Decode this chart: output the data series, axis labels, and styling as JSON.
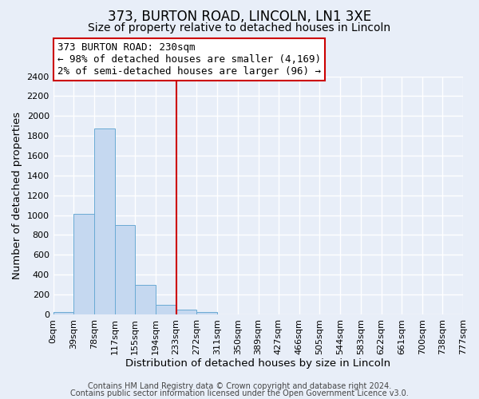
{
  "title": "373, BURTON ROAD, LINCOLN, LN1 3XE",
  "subtitle": "Size of property relative to detached houses in Lincoln",
  "xlabel": "Distribution of detached houses by size in Lincoln",
  "ylabel": "Number of detached properties",
  "bin_edges": [
    0,
    39,
    78,
    117,
    155,
    194,
    233,
    272,
    311,
    350,
    389,
    427,
    466,
    505,
    544,
    583,
    622,
    661,
    700,
    738,
    777
  ],
  "bin_labels": [
    "0sqm",
    "39sqm",
    "78sqm",
    "117sqm",
    "155sqm",
    "194sqm",
    "233sqm",
    "272sqm",
    "311sqm",
    "350sqm",
    "389sqm",
    "427sqm",
    "466sqm",
    "505sqm",
    "544sqm",
    "583sqm",
    "622sqm",
    "661sqm",
    "700sqm",
    "738sqm",
    "777sqm"
  ],
  "bar_heights": [
    20,
    1010,
    1870,
    900,
    300,
    100,
    45,
    25,
    0,
    0,
    0,
    0,
    0,
    0,
    0,
    0,
    0,
    0,
    0,
    0
  ],
  "bar_color": "#c5d8f0",
  "bar_edgecolor": "#6aaad4",
  "vline_x": 233,
  "vline_color": "#cc0000",
  "ylim": [
    0,
    2400
  ],
  "yticks": [
    0,
    200,
    400,
    600,
    800,
    1000,
    1200,
    1400,
    1600,
    1800,
    2000,
    2200,
    2400
  ],
  "annotation_title": "373 BURTON ROAD: 230sqm",
  "annotation_line1": "← 98% of detached houses are smaller (4,169)",
  "annotation_line2": "2% of semi-detached houses are larger (96) →",
  "annotation_box_color": "#ffffff",
  "annotation_box_edgecolor": "#cc0000",
  "footer_line1": "Contains HM Land Registry data © Crown copyright and database right 2024.",
  "footer_line2": "Contains public sector information licensed under the Open Government Licence v3.0.",
  "background_color": "#e8eef8",
  "plot_bg_color": "#e8eef8",
  "grid_color": "#ffffff",
  "title_fontsize": 12,
  "subtitle_fontsize": 10,
  "axis_label_fontsize": 9.5,
  "tick_fontsize": 8,
  "footer_fontsize": 7,
  "annotation_fontsize": 9
}
